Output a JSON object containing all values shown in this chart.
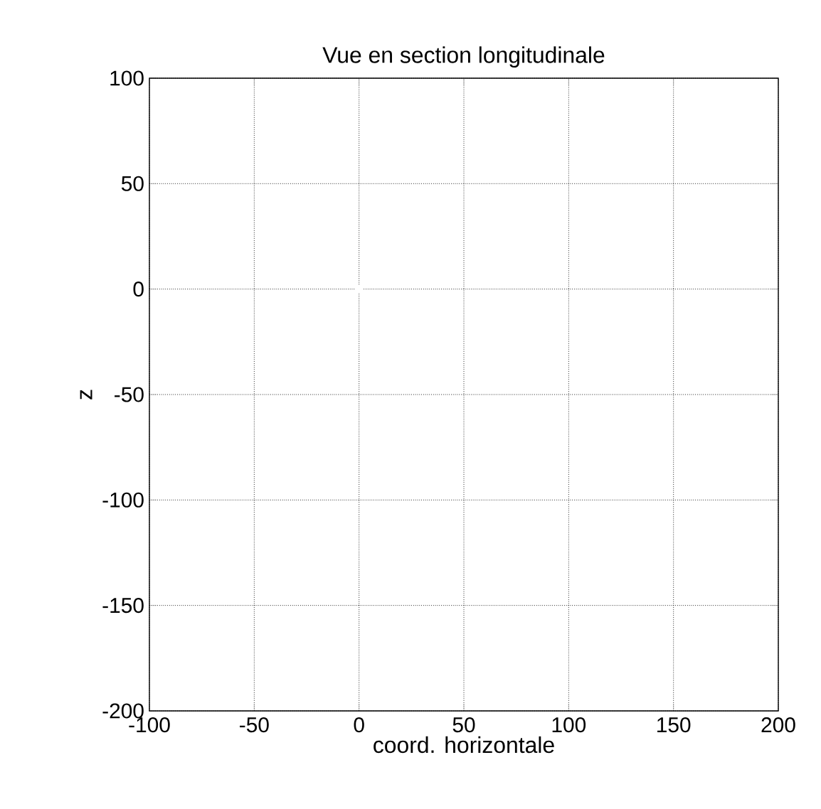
{
  "chart_data": {
    "type": "scatter",
    "title": "Vue en section longitudinale",
    "xlabel": "coord. horizontale",
    "ylabel": "z",
    "x": [
      0
    ],
    "values": [
      0
    ],
    "color": "#ffffff",
    "xlim": [
      -100,
      200
    ],
    "ylim": [
      -200,
      100
    ],
    "xticks": [
      -100,
      -50,
      0,
      50,
      100,
      150,
      200
    ],
    "yticks": [
      -200,
      -150,
      -100,
      -50,
      0,
      50,
      100
    ],
    "grid": true
  }
}
